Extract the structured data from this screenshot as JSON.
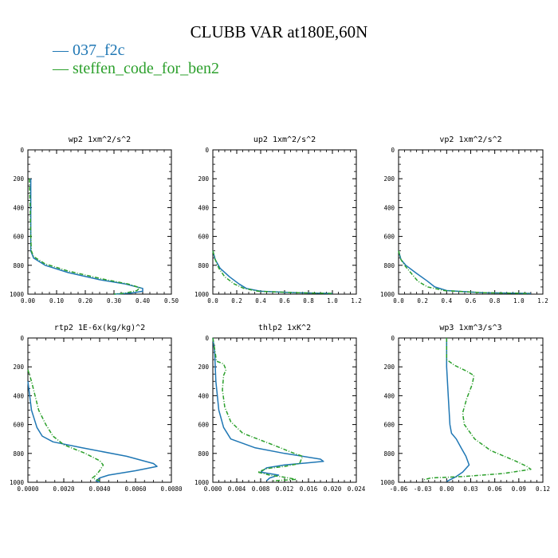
{
  "title": "CLUBB VAR at180E,60N",
  "legend": [
    {
      "dash": "—",
      "name": "037_f2c",
      "color": "#1f77b4"
    },
    {
      "dash": "—",
      "name": "steffen_code_for_ben2",
      "color": "#2ca02c"
    }
  ],
  "colors": {
    "series1": "#1f77b4",
    "series2": "#2ca02c"
  },
  "chart_data": [
    {
      "type": "line",
      "title": "wp2  1xm^2/s^2",
      "xlim": [
        0,
        0.5
      ],
      "ylim": [
        0,
        1000
      ],
      "y_inverted": true,
      "xticks": [
        "0.00",
        "0.10",
        "0.20",
        "0.30",
        "0.40",
        "0.50"
      ],
      "yticks": [
        "0",
        "200",
        "400",
        "600",
        "800",
        "1000"
      ],
      "series": [
        {
          "name": "037_f2c",
          "points": [
            [
              0.01,
              200
            ],
            [
              0.01,
              400
            ],
            [
              0.01,
              600
            ],
            [
              0.01,
              700
            ],
            [
              0.02,
              750
            ],
            [
              0.06,
              800
            ],
            [
              0.14,
              850
            ],
            [
              0.25,
              900
            ],
            [
              0.34,
              930
            ],
            [
              0.4,
              960
            ],
            [
              0.4,
              980
            ],
            [
              0.36,
              992
            ],
            [
              0.3,
              1000
            ]
          ]
        },
        {
          "name": "steffen_code_for_ben2",
          "points": [
            [
              0.005,
              200
            ],
            [
              0.008,
              400
            ],
            [
              0.01,
              600
            ],
            [
              0.012,
              700
            ],
            [
              0.02,
              740
            ],
            [
              0.06,
              790
            ],
            [
              0.14,
              840
            ],
            [
              0.26,
              895
            ],
            [
              0.35,
              930
            ],
            [
              0.39,
              955
            ],
            [
              0.38,
              975
            ],
            [
              0.34,
              992
            ],
            [
              0.3,
              1000
            ]
          ]
        }
      ]
    },
    {
      "type": "line",
      "title": "up2  1xm^2/s^2",
      "xlim": [
        0,
        1.2
      ],
      "ylim": [
        0,
        1000
      ],
      "y_inverted": true,
      "xticks": [
        "0.0",
        "0.2",
        "0.4",
        "0.6",
        "0.8",
        "1.0",
        "1.2"
      ],
      "yticks": [
        "0",
        "200",
        "400",
        "600",
        "800",
        "1000"
      ],
      "series": [
        {
          "name": "037_f2c",
          "points": [
            [
              0.0,
              700
            ],
            [
              0.02,
              760
            ],
            [
              0.06,
              820
            ],
            [
              0.14,
              880
            ],
            [
              0.22,
              930
            ],
            [
              0.28,
              960
            ],
            [
              0.4,
              980
            ],
            [
              0.7,
              990
            ],
            [
              1.0,
              995
            ]
          ]
        },
        {
          "name": "steffen_code_for_ben2",
          "points": [
            [
              0.0,
              700
            ],
            [
              0.02,
              760
            ],
            [
              0.05,
              820
            ],
            [
              0.1,
              880
            ],
            [
              0.18,
              930
            ],
            [
              0.26,
              960
            ],
            [
              0.38,
              980
            ],
            [
              0.7,
              990
            ],
            [
              1.0,
              995
            ]
          ]
        }
      ]
    },
    {
      "type": "line",
      "title": "vp2  1xm^2/s^2",
      "xlim": [
        0,
        1.2
      ],
      "ylim": [
        0,
        1000
      ],
      "y_inverted": true,
      "xticks": [
        "0.0",
        "0.2",
        "0.4",
        "0.6",
        "0.8",
        "1.0",
        "1.2"
      ],
      "yticks": [
        "0",
        "200",
        "400",
        "600",
        "800",
        "1000"
      ],
      "series": [
        {
          "name": "037_f2c",
          "points": [
            [
              0.0,
              700
            ],
            [
              0.02,
              760
            ],
            [
              0.06,
              800
            ],
            [
              0.14,
              850
            ],
            [
              0.24,
              910
            ],
            [
              0.3,
              950
            ],
            [
              0.4,
              975
            ],
            [
              0.7,
              990
            ],
            [
              1.1,
              995
            ]
          ]
        },
        {
          "name": "steffen_code_for_ben2",
          "points": [
            [
              0.0,
              700
            ],
            [
              0.02,
              760
            ],
            [
              0.05,
              800
            ],
            [
              0.1,
              850
            ],
            [
              0.16,
              910
            ],
            [
              0.24,
              950
            ],
            [
              0.38,
              975
            ],
            [
              0.7,
              990
            ],
            [
              1.1,
              995
            ]
          ]
        }
      ]
    },
    {
      "type": "line",
      "title": "rtp2  1E-6x(kg/kg)^2",
      "xlim": [
        0,
        0.008
      ],
      "ylim": [
        0,
        1000
      ],
      "y_inverted": true,
      "xticks": [
        "0.0000",
        "0.0020",
        "0.0040",
        "0.0060",
        "0.0080"
      ],
      "yticks": [
        "0",
        "200",
        "400",
        "600",
        "800",
        "1000"
      ],
      "series": [
        {
          "name": "037_f2c",
          "points": [
            [
              0.0,
              300
            ],
            [
              0.0002,
              500
            ],
            [
              0.0005,
              620
            ],
            [
              0.0008,
              680
            ],
            [
              0.0014,
              720
            ],
            [
              0.003,
              760
            ],
            [
              0.0055,
              820
            ],
            [
              0.007,
              870
            ],
            [
              0.0072,
              890
            ],
            [
              0.006,
              920
            ],
            [
              0.0045,
              950
            ],
            [
              0.004,
              970
            ],
            [
              0.0038,
              990
            ],
            [
              0.004,
              1000
            ]
          ]
        },
        {
          "name": "steffen_code_for_ben2",
          "points": [
            [
              0.0,
              220
            ],
            [
              0.0002,
              300
            ],
            [
              0.0004,
              400
            ],
            [
              0.0006,
              500
            ],
            [
              0.001,
              600
            ],
            [
              0.0014,
              680
            ],
            [
              0.002,
              740
            ],
            [
              0.0032,
              800
            ],
            [
              0.004,
              850
            ],
            [
              0.0042,
              880
            ],
            [
              0.004,
              920
            ],
            [
              0.0038,
              950
            ],
            [
              0.0036,
              970
            ],
            [
              0.004,
              990
            ]
          ]
        }
      ]
    },
    {
      "type": "line",
      "title": "thlp2  1xK^2",
      "xlim": [
        0,
        0.024
      ],
      "ylim": [
        0,
        1000
      ],
      "y_inverted": true,
      "xticks": [
        "0.000",
        "0.004",
        "0.008",
        "0.012",
        "0.016",
        "0.020",
        "0.024"
      ],
      "yticks": [
        "0",
        "200",
        "400",
        "600",
        "800",
        "1000"
      ],
      "series": [
        {
          "name": "037_f2c",
          "points": [
            [
              0.0,
              0
            ],
            [
              0.0003,
              100
            ],
            [
              0.0005,
              300
            ],
            [
              0.001,
              500
            ],
            [
              0.0018,
              620
            ],
            [
              0.003,
              700
            ],
            [
              0.007,
              760
            ],
            [
              0.012,
              800
            ],
            [
              0.018,
              840
            ],
            [
              0.0185,
              855
            ],
            [
              0.012,
              880
            ],
            [
              0.009,
              900
            ],
            [
              0.008,
              930
            ],
            [
              0.011,
              950
            ],
            [
              0.0095,
              970
            ],
            [
              0.009,
              990
            ]
          ]
        },
        {
          "name": "steffen_code_for_ben2",
          "points": [
            [
              0.0,
              0
            ],
            [
              0.0004,
              100
            ],
            [
              0.0006,
              160
            ],
            [
              0.0018,
              180
            ],
            [
              0.0022,
              220
            ],
            [
              0.0018,
              260
            ],
            [
              0.0016,
              360
            ],
            [
              0.002,
              480
            ],
            [
              0.003,
              580
            ],
            [
              0.005,
              660
            ],
            [
              0.01,
              740
            ],
            [
              0.013,
              790
            ],
            [
              0.015,
              820
            ],
            [
              0.0145,
              870
            ],
            [
              0.012,
              890
            ],
            [
              0.009,
              905
            ],
            [
              0.0075,
              930
            ],
            [
              0.0095,
              950
            ],
            [
              0.012,
              965
            ],
            [
              0.014,
              980
            ],
            [
              0.01,
              990
            ]
          ]
        }
      ]
    },
    {
      "type": "line",
      "title": "wp3  1xm^3/s^3",
      "xlim": [
        -0.06,
        0.12
      ],
      "ylim": [
        0,
        1000
      ],
      "y_inverted": true,
      "xticks": [
        "-0.06",
        "-0.03",
        "0.00",
        "0.03",
        "0.06",
        "0.09",
        "0.12"
      ],
      "yticks": [
        "0",
        "200",
        "400",
        "600",
        "800",
        "1000"
      ],
      "series": [
        {
          "name": "037_f2c",
          "points": [
            [
              0.0,
              0
            ],
            [
              0.0,
              200
            ],
            [
              0.002,
              400
            ],
            [
              0.004,
              600
            ],
            [
              0.006,
              660
            ],
            [
              0.012,
              700
            ],
            [
              0.018,
              760
            ],
            [
              0.024,
              820
            ],
            [
              0.028,
              880
            ],
            [
              0.02,
              930
            ],
            [
              0.012,
              960
            ],
            [
              0.005,
              980
            ],
            [
              0.0,
              995
            ]
          ]
        },
        {
          "name": "steffen_code_for_ben2",
          "points": [
            [
              0.0,
              0
            ],
            [
              0.0,
              150
            ],
            [
              0.01,
              190
            ],
            [
              0.025,
              230
            ],
            [
              0.034,
              260
            ],
            [
              0.032,
              320
            ],
            [
              0.025,
              420
            ],
            [
              0.02,
              520
            ],
            [
              0.022,
              600
            ],
            [
              0.035,
              700
            ],
            [
              0.055,
              780
            ],
            [
              0.085,
              850
            ],
            [
              0.1,
              890
            ],
            [
              0.105,
              910
            ],
            [
              0.07,
              940
            ],
            [
              0.02,
              960
            ],
            [
              -0.02,
              970
            ],
            [
              -0.03,
              985
            ]
          ]
        }
      ]
    }
  ]
}
